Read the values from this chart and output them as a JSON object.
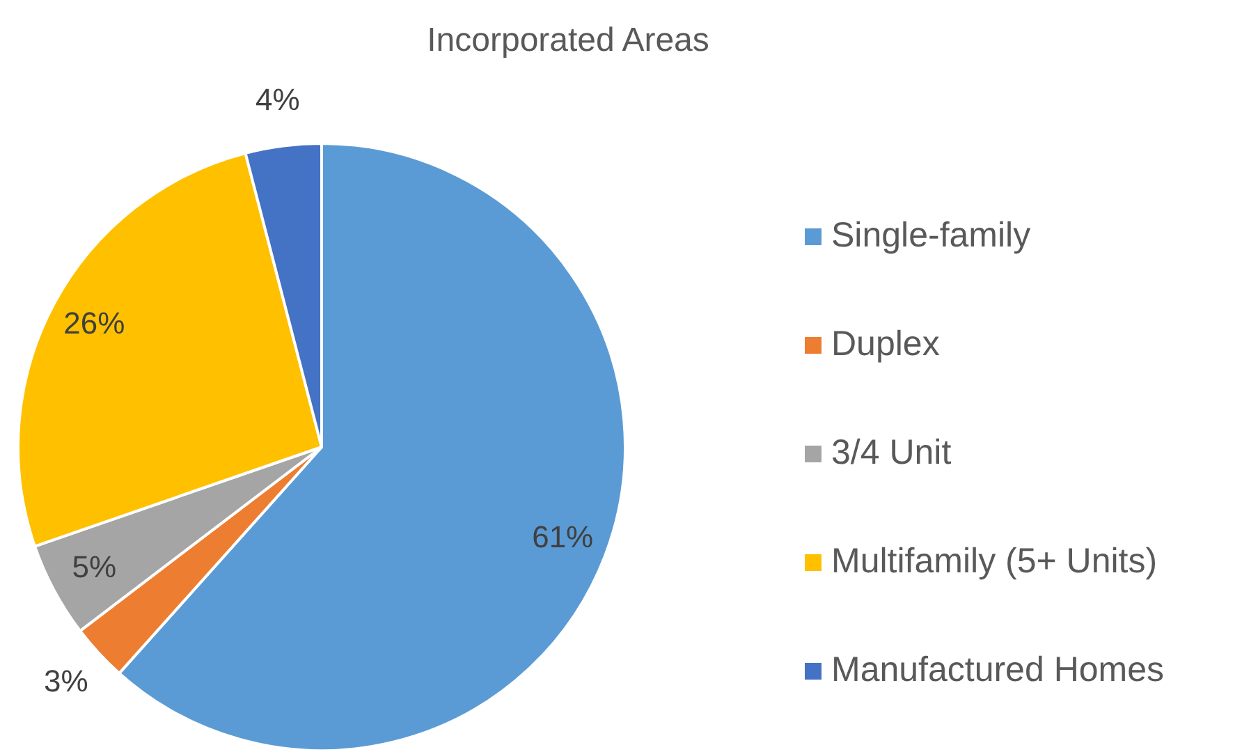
{
  "chart_data": {
    "type": "pie",
    "title": "Incorporated Areas",
    "categories": [
      "Single-family",
      "Duplex",
      "3/4 Unit",
      "Multifamily (5+ Units)",
      "Manufactured Homes"
    ],
    "values": [
      61,
      3,
      5,
      26,
      4
    ],
    "colors": [
      "#5b9bd5",
      "#ed7d31",
      "#a5a5a5",
      "#ffc000",
      "#4472c4"
    ],
    "value_labels": [
      "61%",
      "3%",
      "5%",
      "26%",
      "4%"
    ],
    "legend": "right"
  }
}
